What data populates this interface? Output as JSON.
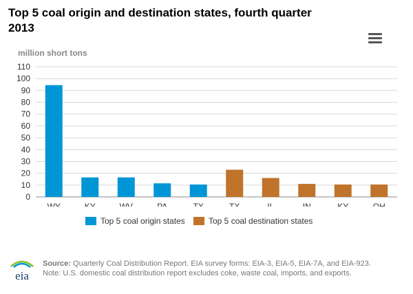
{
  "title": "Top 5 coal origin and destination states, fourth quarter 2013",
  "unit_label": "million short tons",
  "menu": {
    "icon": "hamburger-menu-icon"
  },
  "legend": [
    {
      "label": "Top 5 coal origin states",
      "color": "#0096d6"
    },
    {
      "label": "Top 5 coal destination states",
      "color": "#c0732a"
    }
  ],
  "source": {
    "prefix": "Source:",
    "text": "Quarterly Coal Distribution Report. EIA survey forms: EIA-3, EIA-5, EIA-7A, and EIA-923.",
    "note": "Note: U.S. domestic coal distribution report excludes coke, waste coal, imports, and exports."
  },
  "logo_text": "eia",
  "chart_data": {
    "type": "bar",
    "title": "Top 5 coal origin and destination states, fourth quarter 2013",
    "ylabel": "million short tons",
    "ylim": [
      0,
      110
    ],
    "yticks": [
      0,
      10,
      20,
      30,
      40,
      50,
      60,
      70,
      80,
      90,
      100,
      110
    ],
    "grid": true,
    "categories": [
      "WY",
      "KY",
      "WV",
      "PA",
      "TX",
      "TX",
      "IL",
      "IN",
      "KY",
      "OH"
    ],
    "values": [
      94.5,
      16.5,
      16.5,
      11.5,
      10.5,
      23,
      16,
      11,
      10.5,
      10.5
    ],
    "groups": [
      0,
      0,
      0,
      0,
      0,
      1,
      1,
      1,
      1,
      1
    ],
    "series": [
      {
        "name": "Top 5 coal origin states",
        "color": "#0096d6"
      },
      {
        "name": "Top 5 coal destination states",
        "color": "#c0732a"
      }
    ],
    "legend_position": "bottom"
  }
}
